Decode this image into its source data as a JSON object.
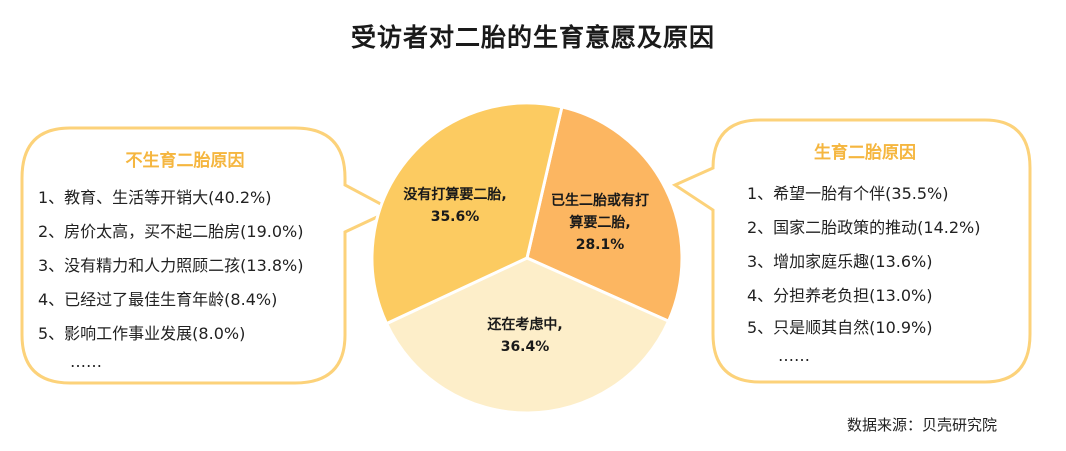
{
  "title": "受访者对二胎的生育意愿及原因",
  "chart_data": {
    "type": "pie",
    "slices": [
      {
        "label_lines": [
          "没有打算要二胎,",
          "35.6%"
        ],
        "value": 35.6,
        "color": "#fccb61"
      },
      {
        "label_lines": [
          "已生二胎或有打",
          "算要二胎,",
          "28.1%"
        ],
        "value": 28.1,
        "color": "#fcb661"
      },
      {
        "label_lines": [
          "还在考虑中,",
          "36.4%"
        ],
        "value": 36.4,
        "color": "#fdeec9"
      }
    ]
  },
  "left_box": {
    "heading": "不生育二胎原因",
    "items": [
      "1、教育、生活等开销大(40.2%)",
      "2、房价太高，买不起二胎房(19.0%)",
      "3、没有精力和人力照顾二孩(13.8%)",
      "4、已经过了最佳生育年龄(8.4%)",
      "5、影响工作事业发展(8.0%)",
      "……"
    ]
  },
  "right_box": {
    "heading": "生育二胎原因",
    "items": [
      "1、希望一胎有个伴(35.5%)",
      "2、国家二胎政策的推动(14.2%)",
      "3、增加家庭乐趣(13.6%)",
      "4、分担养老负担(13.0%)",
      "5、只是顺其自然(10.9%)",
      "……"
    ]
  },
  "source": "数据来源：贝壳研究院",
  "colors": {
    "box_border": "#fcd27a",
    "heading": "#f5b63f"
  }
}
